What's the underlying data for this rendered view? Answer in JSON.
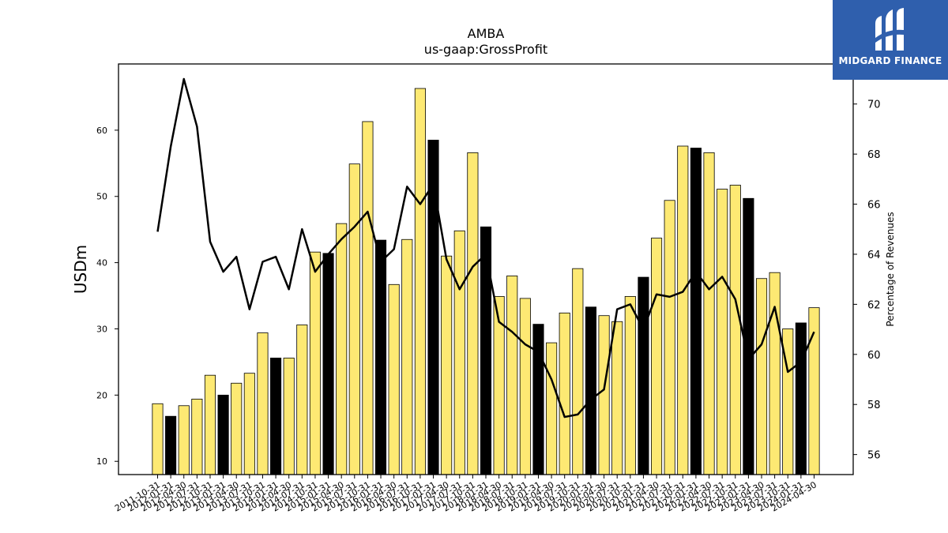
{
  "chart_data": {
    "type": "bar",
    "title": "AMBA",
    "subtitle": "us-gaap:GrossProfit",
    "ylabel": "USDm",
    "y2label": "Percentage of Revenues",
    "ylim": [
      8,
      70
    ],
    "y2lim": [
      55.2,
      71.6
    ],
    "yticks": [
      10,
      20,
      30,
      40,
      50,
      60
    ],
    "y2ticks": [
      56,
      58,
      60,
      62,
      64,
      66,
      68,
      70
    ],
    "colors": {
      "bar": "#fde973",
      "bar_highlight": "#000000",
      "bar_edge": "#000000",
      "line": "#000000"
    },
    "categories": [
      "2011-10-31",
      "2012-01-31",
      "2012-04-30",
      "2012-07-31",
      "2012-10-31",
      "2013-01-31",
      "2013-04-30",
      "2013-07-31",
      "2013-10-31",
      "2014-01-31",
      "2014-04-30",
      "2014-07-31",
      "2014-10-31",
      "2015-01-31",
      "2015-04-30",
      "2015-07-31",
      "2015-10-31",
      "2016-01-31",
      "2016-04-30",
      "2016-07-31",
      "2016-10-31",
      "2017-01-31",
      "2017-04-30",
      "2017-07-31",
      "2017-10-31",
      "2018-01-31",
      "2018-04-30",
      "2018-07-31",
      "2018-10-31",
      "2019-01-31",
      "2019-04-30",
      "2019-07-31",
      "2019-10-31",
      "2020-01-31",
      "2020-04-30",
      "2020-07-31",
      "2020-10-31",
      "2021-01-31",
      "2021-04-30",
      "2021-07-31",
      "2021-10-31",
      "2022-01-31",
      "2022-04-30",
      "2022-07-31",
      "2022-10-31",
      "2023-01-31",
      "2023-04-30",
      "2023-07-31",
      "2023-10-31",
      "2024-01-31",
      "2024-04-30"
    ],
    "xtick_labels": [
      "2011-10-31",
      "2012-01-31",
      "2012-04-30",
      "2012-07-31",
      "2012-10-31",
      "2013-01-31",
      "2013-04-30",
      "2013-07-31",
      "2013-10-31",
      "2014-01-31",
      "2014-04-30",
      "2014-07-31",
      "2014-10-31",
      "2015-01-31",
      "2015-04-30",
      "2015-07-31",
      "2015-10-31",
      "2016-01-31",
      "2016-04-30",
      "2016-07-31",
      "2016-10-31",
      "2017-01-31",
      "2017-04-30",
      "2017-07-31",
      "2017-10-31",
      "2018-01-31",
      "2018-04-30",
      "2018-07-31",
      "2018-10-31",
      "2019-01-31",
      "2019-04-30",
      "2019-07-31",
      "2019-10-31",
      "2020-01-31",
      "2020-04-30",
      "2020-07-31",
      "2020-10-31",
      "2021-01-31",
      "2021-04-30",
      "2021-07-31",
      "2021-10-31",
      "2022-01-31",
      "2022-04-30",
      "2022-07-31",
      "2022-10-31",
      "2023-01-31",
      "2023-04-30",
      "2023-07-31",
      "2023-10-31",
      "2024-01-31",
      "2024-04-30"
    ],
    "series": [
      {
        "type": "bar",
        "axis": "left",
        "values": [
          18.7,
          16.8,
          18.4,
          19.4,
          23.0,
          20.0,
          21.8,
          23.3,
          29.4,
          25.6,
          25.6,
          30.6,
          41.6,
          41.4,
          45.9,
          54.9,
          61.3,
          43.4,
          36.7,
          43.5,
          66.3,
          58.5,
          41.0,
          44.8,
          56.6,
          45.4,
          34.9,
          38.0,
          34.6,
          30.7,
          27.9,
          32.4,
          39.1,
          33.3,
          32.0,
          31.1,
          34.9,
          37.8,
          43.7,
          49.4,
          57.6,
          57.3,
          56.6,
          51.1,
          51.7,
          49.7,
          37.6,
          38.5,
          30.0,
          30.9,
          33.2
        ],
        "highlight": [
          false,
          true,
          false,
          false,
          false,
          true,
          false,
          false,
          false,
          true,
          false,
          false,
          false,
          true,
          false,
          false,
          false,
          true,
          false,
          false,
          false,
          true,
          false,
          false,
          false,
          true,
          false,
          false,
          false,
          true,
          false,
          false,
          false,
          true,
          false,
          false,
          false,
          true,
          false,
          false,
          false,
          true,
          false,
          false,
          false,
          true,
          false,
          false,
          false,
          true,
          false
        ]
      },
      {
        "type": "line",
        "axis": "right",
        "values": [
          64.9,
          68.3,
          71.0,
          69.1,
          64.5,
          63.3,
          63.9,
          61.8,
          63.7,
          63.9,
          62.6,
          65.0,
          63.3,
          64.0,
          64.6,
          65.1,
          65.7,
          63.7,
          64.2,
          66.7,
          66.0,
          66.8,
          63.8,
          62.6,
          63.5,
          64.0,
          61.3,
          60.9,
          60.4,
          60.1,
          59.0,
          57.5,
          57.6,
          58.2,
          58.6,
          61.8,
          62.0,
          61.0,
          62.4,
          62.3,
          62.5,
          63.3,
          62.6,
          63.1,
          62.2,
          59.8,
          60.4,
          61.9,
          59.3,
          59.7,
          60.9
        ]
      }
    ]
  },
  "logo": {
    "text": "MIDGARD FINANCE"
  }
}
